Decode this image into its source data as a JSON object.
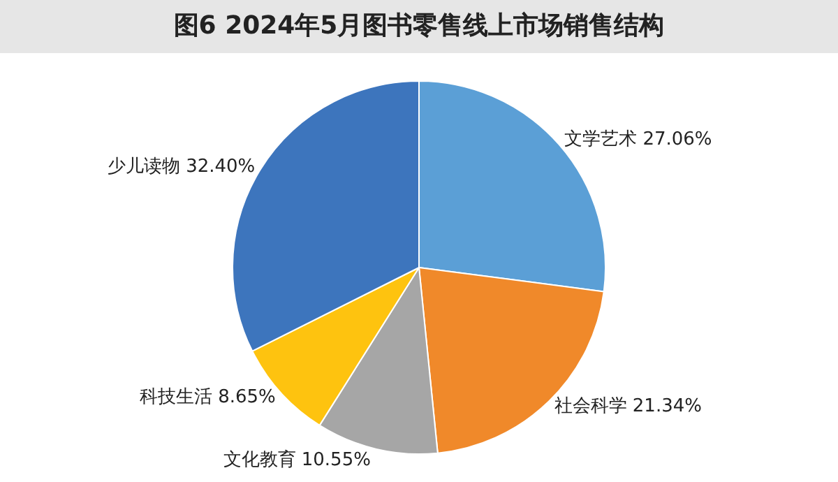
{
  "chart_data": {
    "type": "pie",
    "title": "图6  2024年5月图书零售线上市场销售结构",
    "categories": [
      "文学艺术",
      "社会科学",
      "文化教育",
      "科技生活",
      "少儿读物"
    ],
    "values": [
      27.06,
      21.34,
      10.55,
      8.65,
      32.4
    ],
    "value_labels": [
      "27.06%",
      "21.34%",
      "10.55%",
      "8.65%",
      "32.40%"
    ],
    "colors": [
      "#5b9fd6",
      "#f0892a",
      "#a6a6a6",
      "#fec30f",
      "#3d75bd"
    ],
    "legend": false
  }
}
